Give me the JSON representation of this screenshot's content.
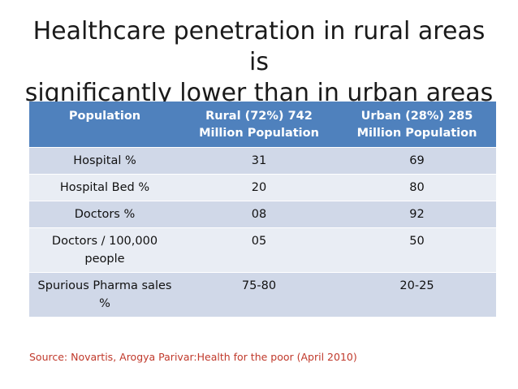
{
  "title": {
    "line1": "Healthcare penetration in rural areas is",
    "line2": "significantly lower than in urban areas"
  },
  "table": {
    "headers": [
      "Population",
      "Rural (72%) 742 Million Population",
      "Urban (28%) 285 Million Population"
    ],
    "rows": [
      [
        "Hospital %",
        "31",
        "69"
      ],
      [
        "Hospital Bed %",
        "20",
        "80"
      ],
      [
        "Doctors %",
        "08",
        "92"
      ],
      [
        "Doctors / 100,000 people",
        "05",
        "50"
      ],
      [
        "Spurious Pharma sales %",
        "75-80",
        "20-25"
      ]
    ]
  },
  "source": "Source: Novartis, Arogya Parivar:Health for the poor (April 2010)",
  "colors": {
    "header_bg": "#4f81bd",
    "row_odd": "#d0d8e8",
    "row_even": "#e9edf4",
    "source_text": "#c0392b"
  }
}
